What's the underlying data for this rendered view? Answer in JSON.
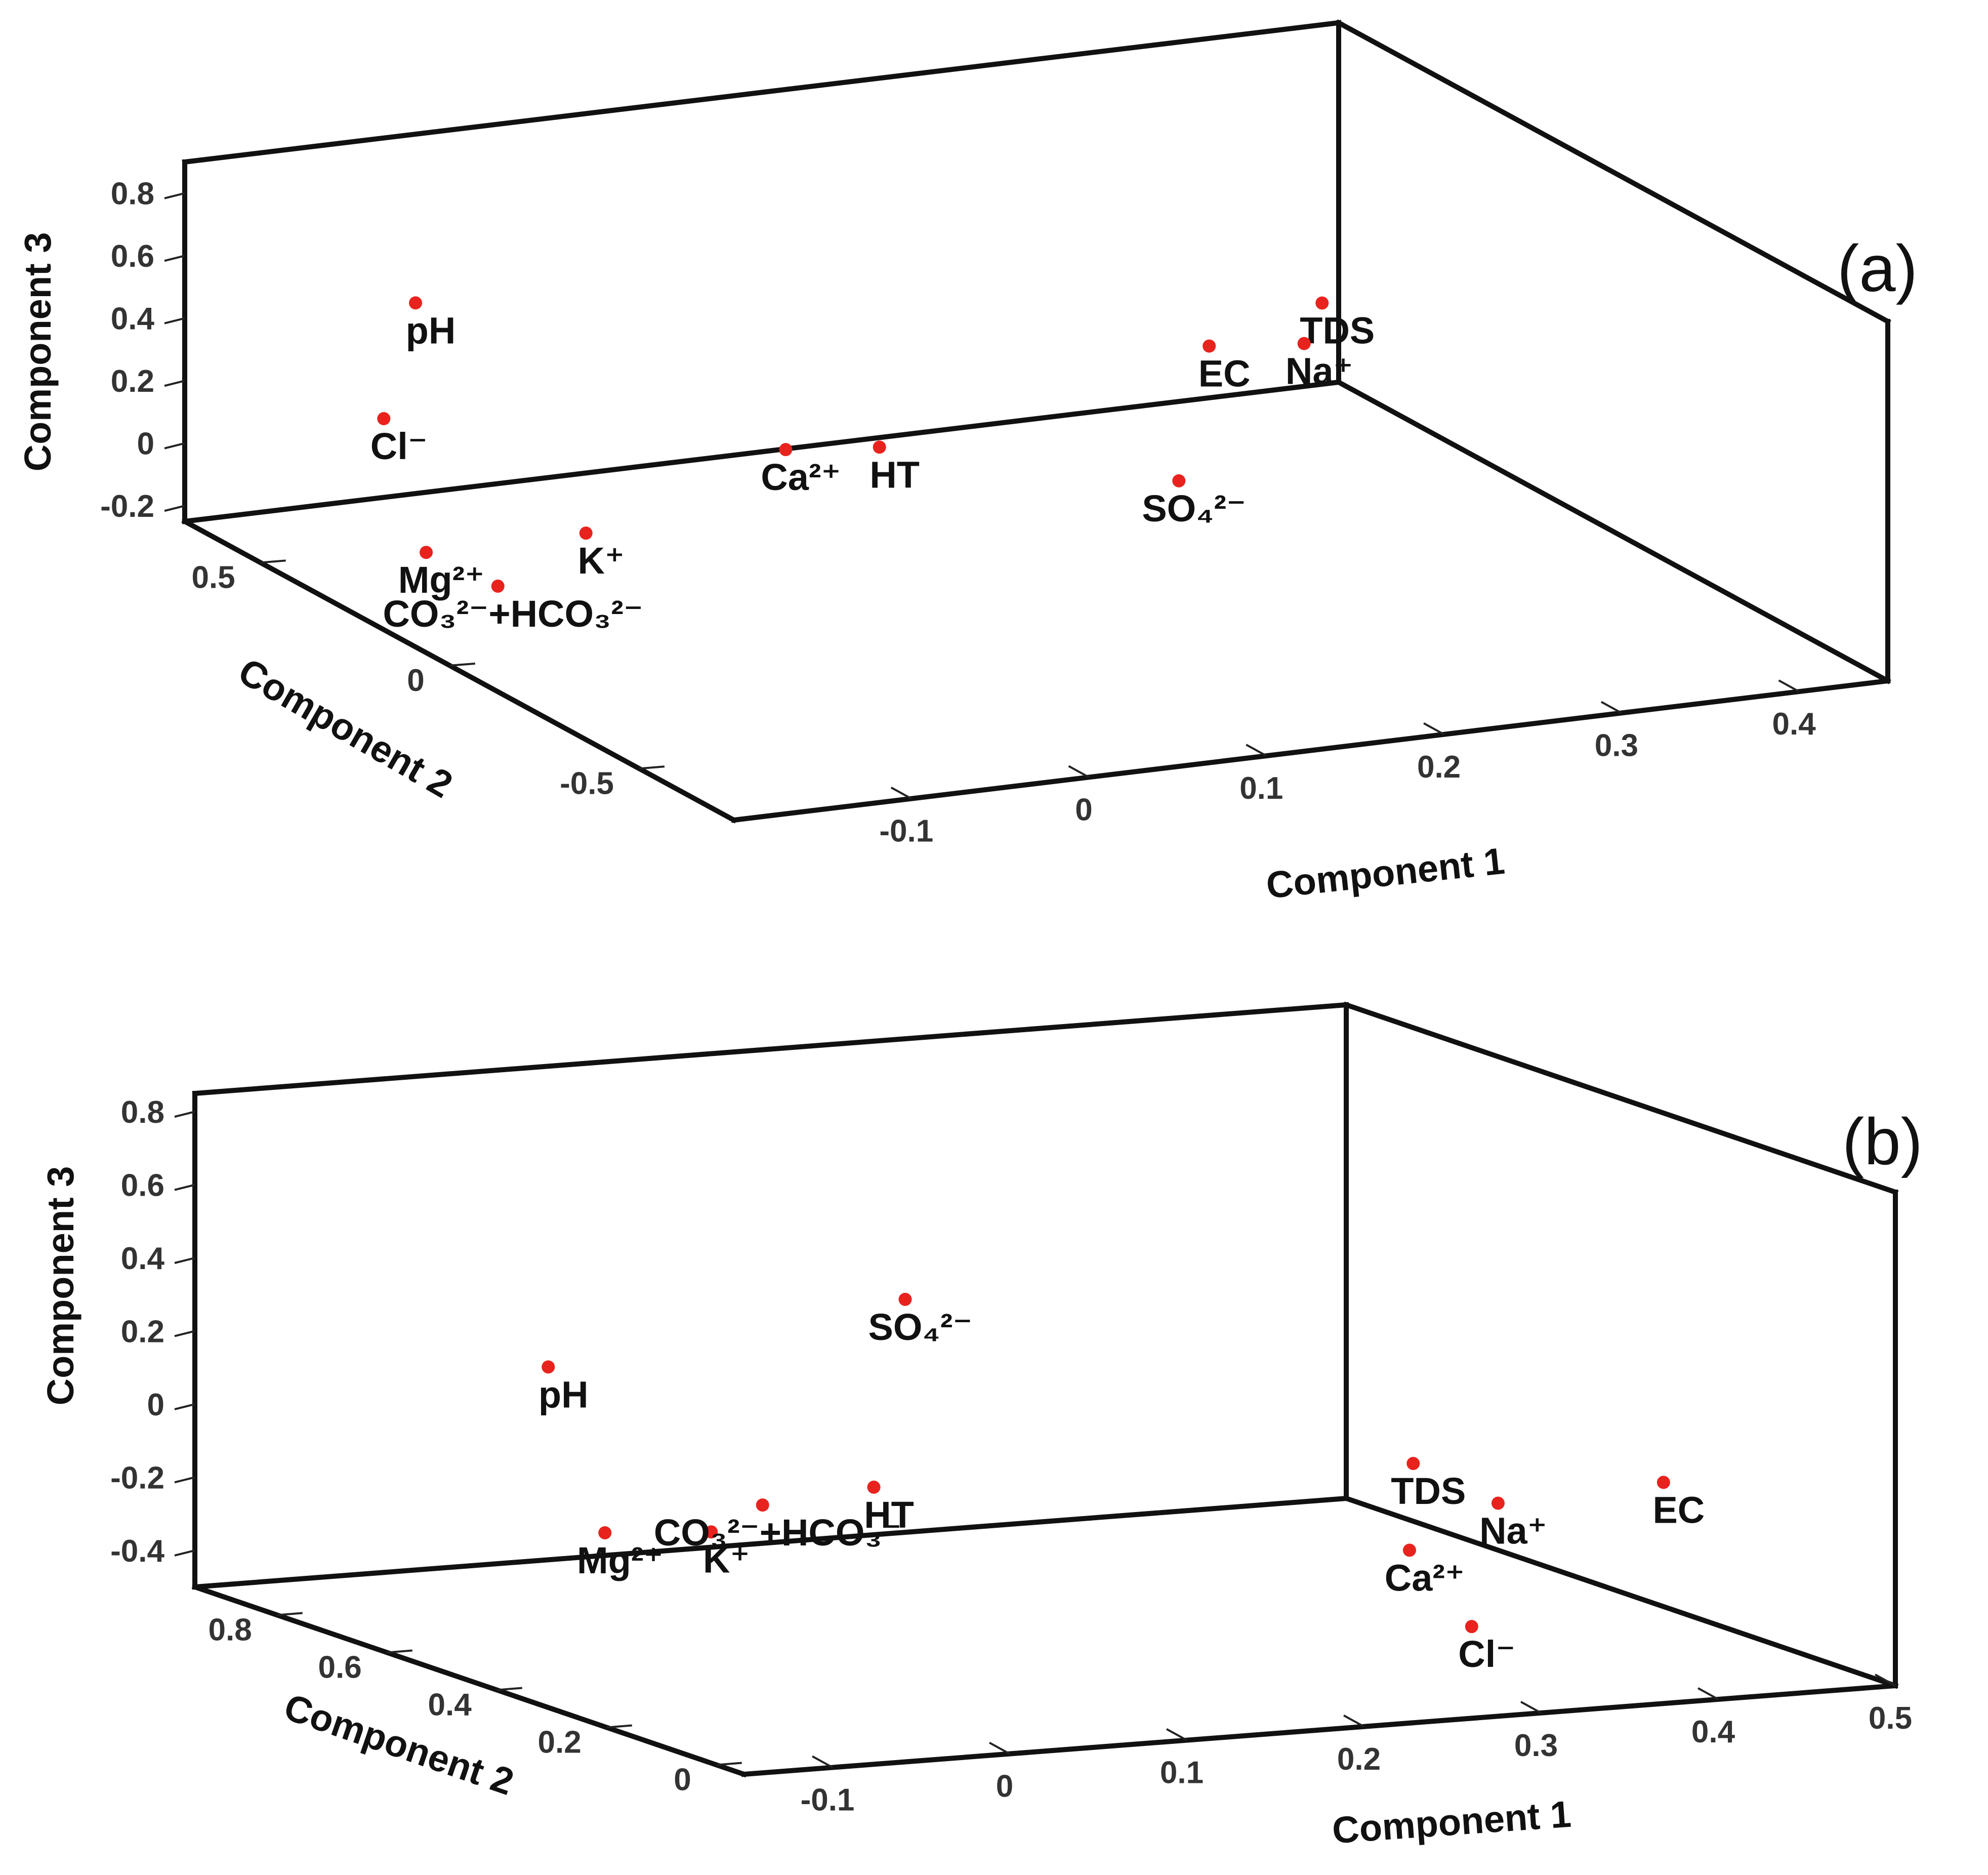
{
  "colors": {
    "point": "#e8231e",
    "frame": "#111111",
    "text": "#111111"
  },
  "chart_data": [
    {
      "type": "scatter",
      "panel_label": "(a)",
      "xlabel": "Component 1",
      "ylabel": "Component 2",
      "zlabel": "Component 3",
      "xlim": [
        -0.2,
        0.45
      ],
      "ylim": [
        -0.75,
        0.7
      ],
      "zlim": [
        -0.25,
        0.9
      ],
      "x_ticks": [
        "-0.1",
        "0",
        "0.1",
        "0.2",
        "0.3",
        "0.4"
      ],
      "y_ticks": [
        "-0.5",
        "0",
        "0.5"
      ],
      "z_ticks": [
        "-0.2",
        "0",
        "0.2",
        "0.4",
        "0.6",
        "0.8"
      ],
      "points": [
        {
          "label": "pH",
          "x": -0.07,
          "y": 0.7,
          "z": 0.36
        },
        {
          "label": "Cl⁻",
          "x": -0.09,
          "y": 0.69,
          "z": 0.01
        },
        {
          "label": "TDS",
          "x": 0.43,
          "y": 0.65,
          "z": 0.05
        },
        {
          "label": "EC",
          "x": 0.36,
          "y": 0.62,
          "z": -0.02
        },
        {
          "label": "Na⁺",
          "x": 0.39,
          "y": 0.51,
          "z": 0.04
        },
        {
          "label": "Ca²⁺",
          "x": 0.13,
          "y": 0.66,
          "z": -0.22
        },
        {
          "label": "HT",
          "x": 0.17,
          "y": 0.6,
          "z": -0.2
        },
        {
          "label": "K⁺",
          "x": -0.07,
          "y": 0.25,
          "z": -0.08
        },
        {
          "label": "Mg²⁺",
          "x": -0.16,
          "y": 0.25,
          "z": -0.08
        },
        {
          "label": "CO₃²⁻+HCO₃²⁻",
          "x": -0.19,
          "y": -0.08,
          "z": 0.05
        },
        {
          "label": "SO₄²⁻",
          "x": 0.2,
          "y": -0.05,
          "z": 0.1
        }
      ]
    },
    {
      "type": "scatter",
      "panel_label": "(b)",
      "xlabel": "Component 1",
      "ylabel": "Component 2",
      "zlabel": "Component 3",
      "xlim": [
        -0.15,
        0.5
      ],
      "ylim": [
        -0.05,
        0.95
      ],
      "zlim": [
        -0.5,
        0.85
      ],
      "x_ticks": [
        "-0.1",
        "0",
        "0.1",
        "0.2",
        "0.3",
        "0.4",
        "0.5"
      ],
      "y_ticks": [
        "0",
        "0.2",
        "0.4",
        "0.6",
        "0.8"
      ],
      "z_ticks": [
        "-0.4",
        "-0.2",
        "0",
        "0.2",
        "0.4",
        "0.6",
        "0.8"
      ],
      "points": [
        {
          "label": "pH",
          "x": -0.09,
          "y": 0.5,
          "z": 0.31
        },
        {
          "label": "SO₄²⁻",
          "x": 0.22,
          "y": 0.85,
          "z": 0.2
        },
        {
          "label": "TDS",
          "x": 0.42,
          "y": 0.57,
          "z": -0.18
        },
        {
          "label": "EC",
          "x": 0.49,
          "y": 0.34,
          "z": -0.14
        },
        {
          "label": "Ca²⁺",
          "x": 0.39,
          "y": 0.48,
          "z": -0.36
        },
        {
          "label": "Na⁺",
          "x": 0.44,
          "y": 0.48,
          "z": -0.25
        },
        {
          "label": "Mg²⁺",
          "x": -0.12,
          "y": 0.3,
          "z": -0.03
        },
        {
          "label": "K⁺",
          "x": -0.06,
          "y": 0.3,
          "z": -0.05
        },
        {
          "label": "CO₃²⁻+HCO₃⁻",
          "x": 0.0,
          "y": 0.4,
          "z": -0.05
        },
        {
          "label": "HT",
          "x": 0.1,
          "y": 0.52,
          "z": -0.1
        },
        {
          "label": "Cl⁻",
          "x": 0.36,
          "y": 0.27,
          "z": -0.45
        }
      ]
    }
  ]
}
